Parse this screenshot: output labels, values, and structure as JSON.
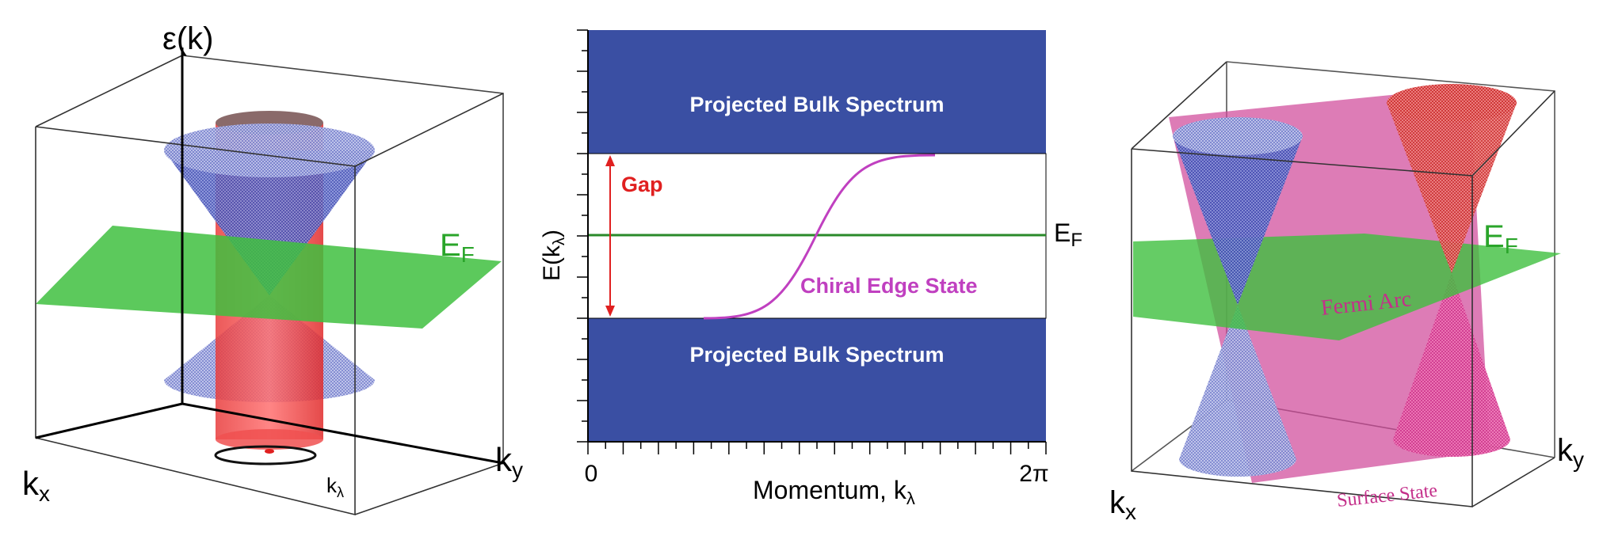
{
  "left_panel": {
    "axis_energy": "ε(k)",
    "axis_kx": "k",
    "axis_kx_sub": "x",
    "axis_ky": "k",
    "axis_ky_sub": "y",
    "fermi_label": "E",
    "fermi_sub": "F",
    "klambda": "k",
    "klambda_sub": "λ"
  },
  "middle_panel": {
    "bulk_top": "Projected Bulk Spectrum",
    "bulk_bottom": "Projected Bulk Spectrum",
    "gap": "Gap",
    "edge_state": "Chiral Edge State",
    "ylabel": "E(k",
    "ylabel_sub": "λ",
    "ylabel_close": ")",
    "xlabel": "Momentum, k",
    "xlabel_sub": "λ",
    "x_tick_start": "0",
    "x_tick_end": "2π",
    "fermi_label": "E",
    "fermi_sub": "F"
  },
  "right_panel": {
    "fermi_label": "E",
    "fermi_sub": "F",
    "fermi_arc": "Fermi Arc",
    "surface_state": "Surface State",
    "axis_kx": "k",
    "axis_kx_sub": "x",
    "axis_ky": "k",
    "axis_ky_sub": "y"
  },
  "colors": {
    "bulk_blue": "#3a4fa3",
    "fermi_green": "#3fbf3f",
    "gap_red": "#e02020",
    "edge_magenta": "#c040c0",
    "surface_pink": "#d04a9a",
    "cone_blue": "#5060d0",
    "cone_red": "#e03030",
    "label_green": "#2aa52a"
  }
}
